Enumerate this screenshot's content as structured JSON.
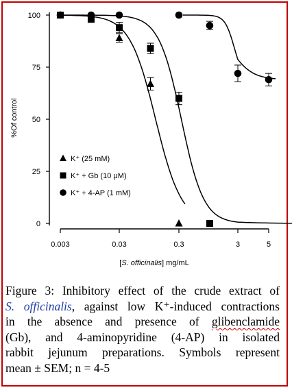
{
  "chart_data": {
    "type": "line",
    "xlabel_prefix": "[",
    "xlabel_species": "S. officinalis",
    "xlabel_suffix": "] mg/mL",
    "ylabel": "%Of control",
    "x_scale": "log",
    "xlim": [
      0.003,
      5
    ],
    "ylim": [
      0,
      100
    ],
    "x_ticks": [
      0.003,
      0.03,
      0.3,
      3,
      5
    ],
    "x_tick_labels": [
      "0.003",
      "0.03",
      "0.3",
      "3",
      "5"
    ],
    "y_ticks": [
      0,
      25,
      50,
      75,
      100
    ],
    "y_tick_labels": [
      "0",
      "25",
      "50",
      "75",
      "100"
    ],
    "grid": false,
    "legend_position": "left-bottom",
    "series": [
      {
        "name": "K⁺ (25 mM)",
        "marker": "triangle",
        "x": [
          0.003,
          0.03,
          0.1,
          0.3
        ],
        "y": [
          100,
          89,
          67,
          0
        ],
        "sem": [
          0,
          2,
          3,
          0
        ]
      },
      {
        "name": "K⁺ + Gb (10 μM)",
        "marker": "square",
        "x": [
          0.003,
          0.01,
          0.03,
          0.1,
          0.3,
          1
        ],
        "y": [
          100,
          98,
          94,
          84,
          60,
          0
        ],
        "sem": [
          0,
          1.5,
          2.5,
          2.5,
          3,
          0
        ]
      },
      {
        "name": "K⁺ + 4-AP (1 mM)",
        "marker": "circle",
        "x": [
          0.003,
          0.01,
          0.03,
          0.3,
          1,
          3,
          5,
          10
        ],
        "y": [
          100,
          100,
          100,
          100,
          95,
          72,
          69,
          69
        ],
        "sem": [
          0,
          0,
          0,
          0,
          2,
          4,
          3,
          3
        ]
      }
    ]
  },
  "caption": {
    "line1": "Figure 3: Inhibitory effect of the crude extract of",
    "line2_species": "S. officinalis",
    "line2_rest": ", against low K⁺-induced contractions",
    "line3": "in the absence and presence of",
    "line3_word": "glibenclamide",
    "line4": "(Gb), and 4-aminopyridine (4-AP) in isolated",
    "line5": "rabbit jejunum preparations. Symbols represent",
    "line6": "mean ± SEM; n = 4-5"
  },
  "colors": {
    "border": "#c00000",
    "caption_text": "#1f3fa8",
    "spellcheck_underline": "#d00000",
    "plot_ink": "#000000"
  }
}
